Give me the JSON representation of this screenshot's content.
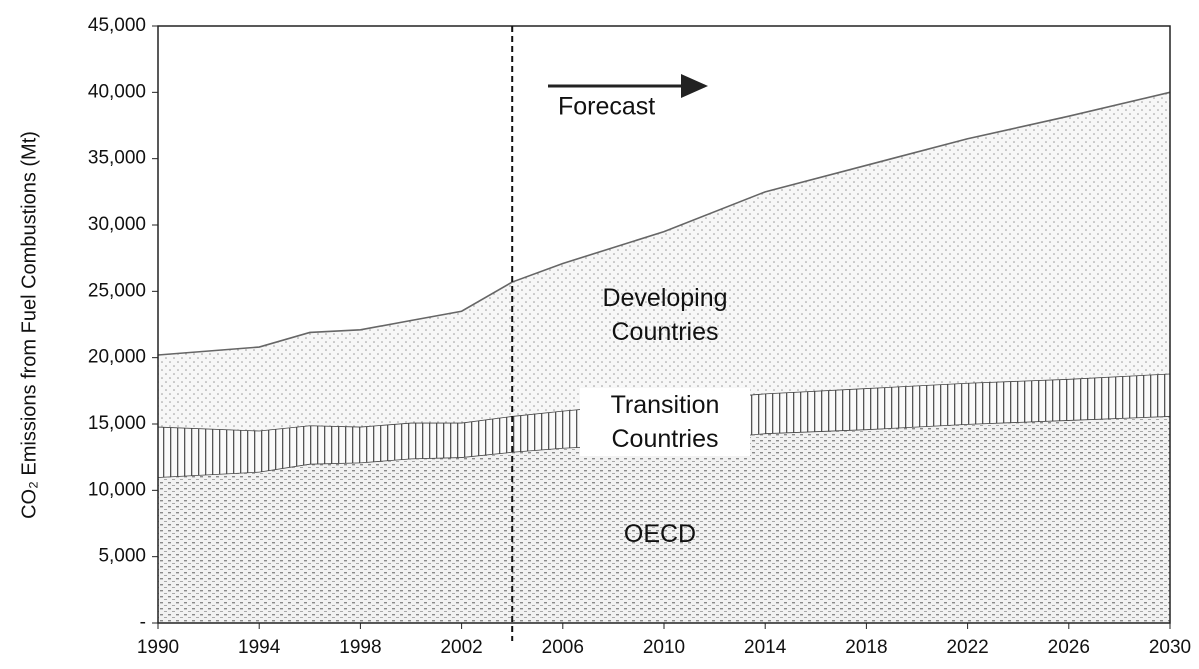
{
  "chart_data": {
    "type": "stacked-area",
    "y_label": "CO₂ Emissions from Fuel Combustions (Mt)",
    "annotation": "Forecast",
    "forecast_start": 2004,
    "x": [
      1990,
      1994,
      1996,
      1998,
      2000,
      2002,
      2004,
      2006,
      2010,
      2014,
      2018,
      2022,
      2026,
      2030
    ],
    "series": [
      {
        "name": "OECD",
        "color": "#8a8a8a",
        "values": [
          11000,
          11400,
          12000,
          12100,
          12400,
          12500,
          12900,
          13200,
          13600,
          14300,
          14600,
          15000,
          15300,
          15600
        ]
      },
      {
        "name": "Transition Countries",
        "color": "#555555",
        "values": [
          3800,
          3100,
          2900,
          2700,
          2700,
          2600,
          2700,
          2800,
          3100,
          3000,
          3100,
          3100,
          3100,
          3200
        ]
      },
      {
        "name": "Developing Countries",
        "color": "#b0b0b0",
        "values": [
          5400,
          6300,
          7000,
          7300,
          7700,
          8400,
          10100,
          11100,
          12800,
          15200,
          16800,
          18400,
          19800,
          21200
        ]
      }
    ],
    "xlim": [
      1990,
      2030
    ],
    "xticks": [
      1990,
      1994,
      1998,
      2002,
      2006,
      2010,
      2014,
      2018,
      2022,
      2026,
      2030
    ],
    "ylim": [
      0,
      45000
    ],
    "yticks": [
      {
        "value": 0,
        "label": "-"
      },
      {
        "value": 5000,
        "label": "5,000"
      },
      {
        "value": 10000,
        "label": "10,000"
      },
      {
        "value": 15000,
        "label": "15,000"
      },
      {
        "value": 20000,
        "label": "20,000"
      },
      {
        "value": 25000,
        "label": "25,000"
      },
      {
        "value": 30000,
        "label": "30,000"
      },
      {
        "value": 35000,
        "label": "35,000"
      },
      {
        "value": 40000,
        "label": "40,000"
      },
      {
        "value": 45000,
        "label": "45,000"
      }
    ]
  }
}
